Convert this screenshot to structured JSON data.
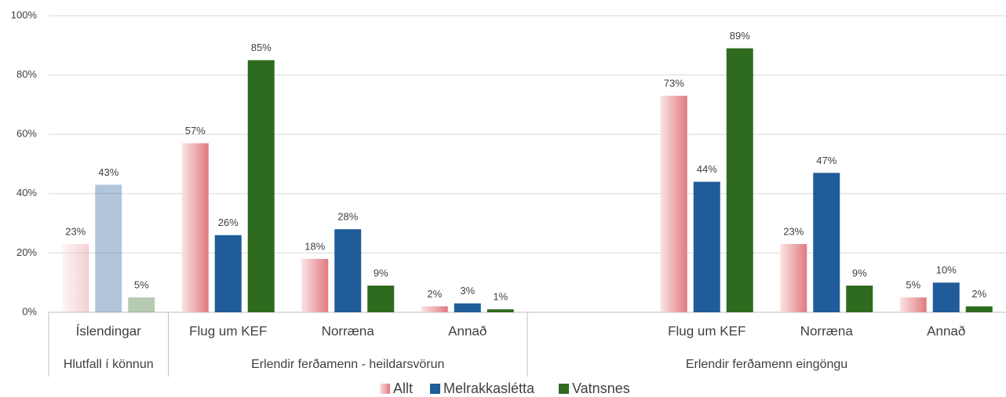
{
  "chart_data": {
    "type": "bar",
    "categories": [
      "Íslendingar",
      "Flug um KEF",
      "Norræna",
      "Annað",
      null,
      "Flug um KEF",
      "Norræna",
      "Annað"
    ],
    "groups": [
      {
        "name": "Hlutfall í könnun",
        "span": 1
      },
      {
        "name": "Erlendir ferðamenn - heildarsvörun",
        "span": 3
      },
      {
        "name": "Erlendir ferðamenn eingöngu",
        "span": 4
      }
    ],
    "faded_categories": [
      0
    ],
    "series": [
      {
        "name": "Allt",
        "color": "#e58a90",
        "gradient": true,
        "values": [
          23,
          57,
          18,
          2,
          null,
          73,
          23,
          5
        ],
        "value_labels": [
          "23%",
          "57%",
          "18%",
          "2%",
          null,
          "73%",
          "23%",
          "5%"
        ]
      },
      {
        "name": "Melrakkaslétta",
        "color": "#1f5c99",
        "values": [
          43,
          26,
          28,
          3,
          null,
          44,
          47,
          10
        ],
        "value_labels": [
          "43%",
          "26%",
          "28%",
          "3%",
          null,
          "44%",
          "47%",
          "10%"
        ]
      },
      {
        "name": "Vatnsnes",
        "color": "#2e6b1f",
        "values": [
          5,
          85,
          9,
          1,
          null,
          89,
          9,
          2
        ],
        "value_labels": [
          "5%",
          "85%",
          "9%",
          "1%",
          null,
          "89%",
          "9%",
          "2%"
        ]
      }
    ],
    "ylim": [
      0,
      100
    ],
    "yticks": [
      {
        "value": 0,
        "label": "0%"
      },
      {
        "value": 20,
        "label": "20%"
      },
      {
        "value": 40,
        "label": "40%"
      },
      {
        "value": 60,
        "label": "60%"
      },
      {
        "value": 80,
        "label": "80%"
      },
      {
        "value": 100,
        "label": "100%"
      }
    ],
    "grid": true,
    "legend": "bottom"
  }
}
